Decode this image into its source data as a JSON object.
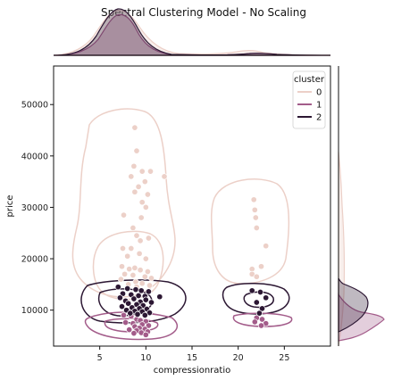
{
  "chart_data": {
    "type": "scatter",
    "title": "Spectral Clustering Model - No Scaling",
    "xlabel": "compressionratio",
    "ylabel": "price",
    "xlim": [
      0,
      30
    ],
    "ylim": [
      3000,
      57500
    ],
    "x_ticks": [
      5,
      10,
      15,
      20,
      25
    ],
    "y_ticks": [
      10000,
      20000,
      30000,
      40000,
      50000
    ],
    "grid": false,
    "legend": {
      "title": "cluster",
      "placement": "top-right"
    },
    "colors": {
      "0": "#ecd0c8",
      "1": "#a35c8a",
      "2": "#2c1733"
    },
    "series": [
      {
        "name": "0",
        "points": [
          [
            8.8,
            45500
          ],
          [
            9.0,
            41000
          ],
          [
            8.7,
            38000
          ],
          [
            9.6,
            37000
          ],
          [
            10.5,
            37000
          ],
          [
            8.4,
            36000
          ],
          [
            12.0,
            36000
          ],
          [
            9.9,
            35000
          ],
          [
            9.2,
            34000
          ],
          [
            8.8,
            33000
          ],
          [
            10.2,
            32500
          ],
          [
            9.6,
            31000
          ],
          [
            10.0,
            30000
          ],
          [
            7.6,
            28500
          ],
          [
            9.5,
            28000
          ],
          [
            8.6,
            26000
          ],
          [
            9.0,
            24500
          ],
          [
            10.3,
            24000
          ],
          [
            9.4,
            23500
          ],
          [
            7.5,
            22000
          ],
          [
            8.4,
            22000
          ],
          [
            9.3,
            21000
          ],
          [
            8.0,
            20500
          ],
          [
            10.0,
            20000
          ],
          [
            7.4,
            18500
          ],
          [
            8.2,
            18000
          ],
          [
            8.8,
            18200
          ],
          [
            9.4,
            17800
          ],
          [
            10.2,
            17500
          ],
          [
            7.7,
            17000
          ],
          [
            8.6,
            16800
          ],
          [
            9.9,
            16500
          ],
          [
            10.6,
            16200
          ],
          [
            7.3,
            16000
          ],
          [
            8.9,
            15500
          ],
          [
            9.6,
            15200
          ],
          [
            8.1,
            15000
          ],
          [
            10.4,
            14800
          ],
          [
            9.0,
            14500
          ],
          [
            21.7,
            31500
          ],
          [
            21.8,
            29500
          ],
          [
            21.9,
            28000
          ],
          [
            22.0,
            26000
          ],
          [
            23.0,
            22500
          ],
          [
            21.5,
            18000
          ],
          [
            22.5,
            18500
          ],
          [
            21.5,
            17000
          ],
          [
            22.0,
            16500
          ]
        ]
      },
      {
        "name": "1",
        "points": [
          [
            7.6,
            9000
          ],
          [
            8.4,
            8800
          ],
          [
            9.0,
            8200
          ],
          [
            9.4,
            8000
          ],
          [
            10.0,
            7800
          ],
          [
            7.8,
            7600
          ],
          [
            8.6,
            7400
          ],
          [
            9.6,
            7200
          ],
          [
            10.3,
            7000
          ],
          [
            8.8,
            6800
          ],
          [
            9.3,
            6500
          ],
          [
            9.9,
            6300
          ],
          [
            8.2,
            6200
          ],
          [
            9.0,
            6000
          ],
          [
            10.2,
            5800
          ],
          [
            9.5,
            5600
          ],
          [
            8.7,
            5500
          ],
          [
            10.0,
            5200
          ],
          [
            22.0,
            8500
          ],
          [
            22.6,
            8200
          ],
          [
            21.8,
            7700
          ],
          [
            23.0,
            7400
          ],
          [
            22.5,
            7000
          ]
        ]
      },
      {
        "name": "2",
        "points": [
          [
            7.0,
            14500
          ],
          [
            8.0,
            14200
          ],
          [
            8.9,
            14000
          ],
          [
            9.5,
            13800
          ],
          [
            10.3,
            13600
          ],
          [
            7.5,
            13200
          ],
          [
            8.4,
            13000
          ],
          [
            9.2,
            12800
          ],
          [
            9.9,
            12700
          ],
          [
            11.5,
            12600
          ],
          [
            7.2,
            12400
          ],
          [
            8.7,
            12200
          ],
          [
            10.0,
            12000
          ],
          [
            7.8,
            11800
          ],
          [
            9.4,
            11600
          ],
          [
            10.6,
            11500
          ],
          [
            8.1,
            11300
          ],
          [
            9.0,
            11100
          ],
          [
            9.7,
            10900
          ],
          [
            7.4,
            10700
          ],
          [
            8.5,
            10500
          ],
          [
            9.3,
            10300
          ],
          [
            10.1,
            10200
          ],
          [
            7.9,
            10000
          ],
          [
            8.8,
            9800
          ],
          [
            9.6,
            9700
          ],
          [
            10.4,
            9500
          ],
          [
            8.3,
            9400
          ],
          [
            9.1,
            9200
          ],
          [
            9.9,
            9000
          ],
          [
            21.5,
            13800
          ],
          [
            22.4,
            13500
          ],
          [
            23.0,
            12400
          ],
          [
            22.0,
            11500
          ],
          [
            22.6,
            10300
          ],
          [
            22.3,
            9400
          ]
        ]
      }
    ]
  }
}
